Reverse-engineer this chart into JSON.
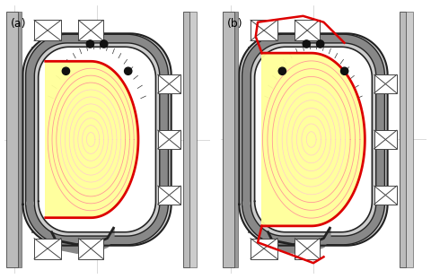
{
  "fig_width": 4.8,
  "fig_height": 3.11,
  "dpi": 100,
  "background": "#ffffff",
  "label_a": "(a)",
  "label_b": "(b)",
  "label_fontsize": 9,
  "vessel_outer_color": "#222222",
  "vessel_fill_color": "#999999",
  "vessel_inner_color": "#444444",
  "plasma_yellow": "#ffff99",
  "plasma_red": "#dd0000",
  "plasma_pink": "#ff9999",
  "struct_dark": "#444444",
  "struct_mid": "#888888",
  "struct_light": "#cccccc",
  "bg_gray": "#e8e8e8"
}
